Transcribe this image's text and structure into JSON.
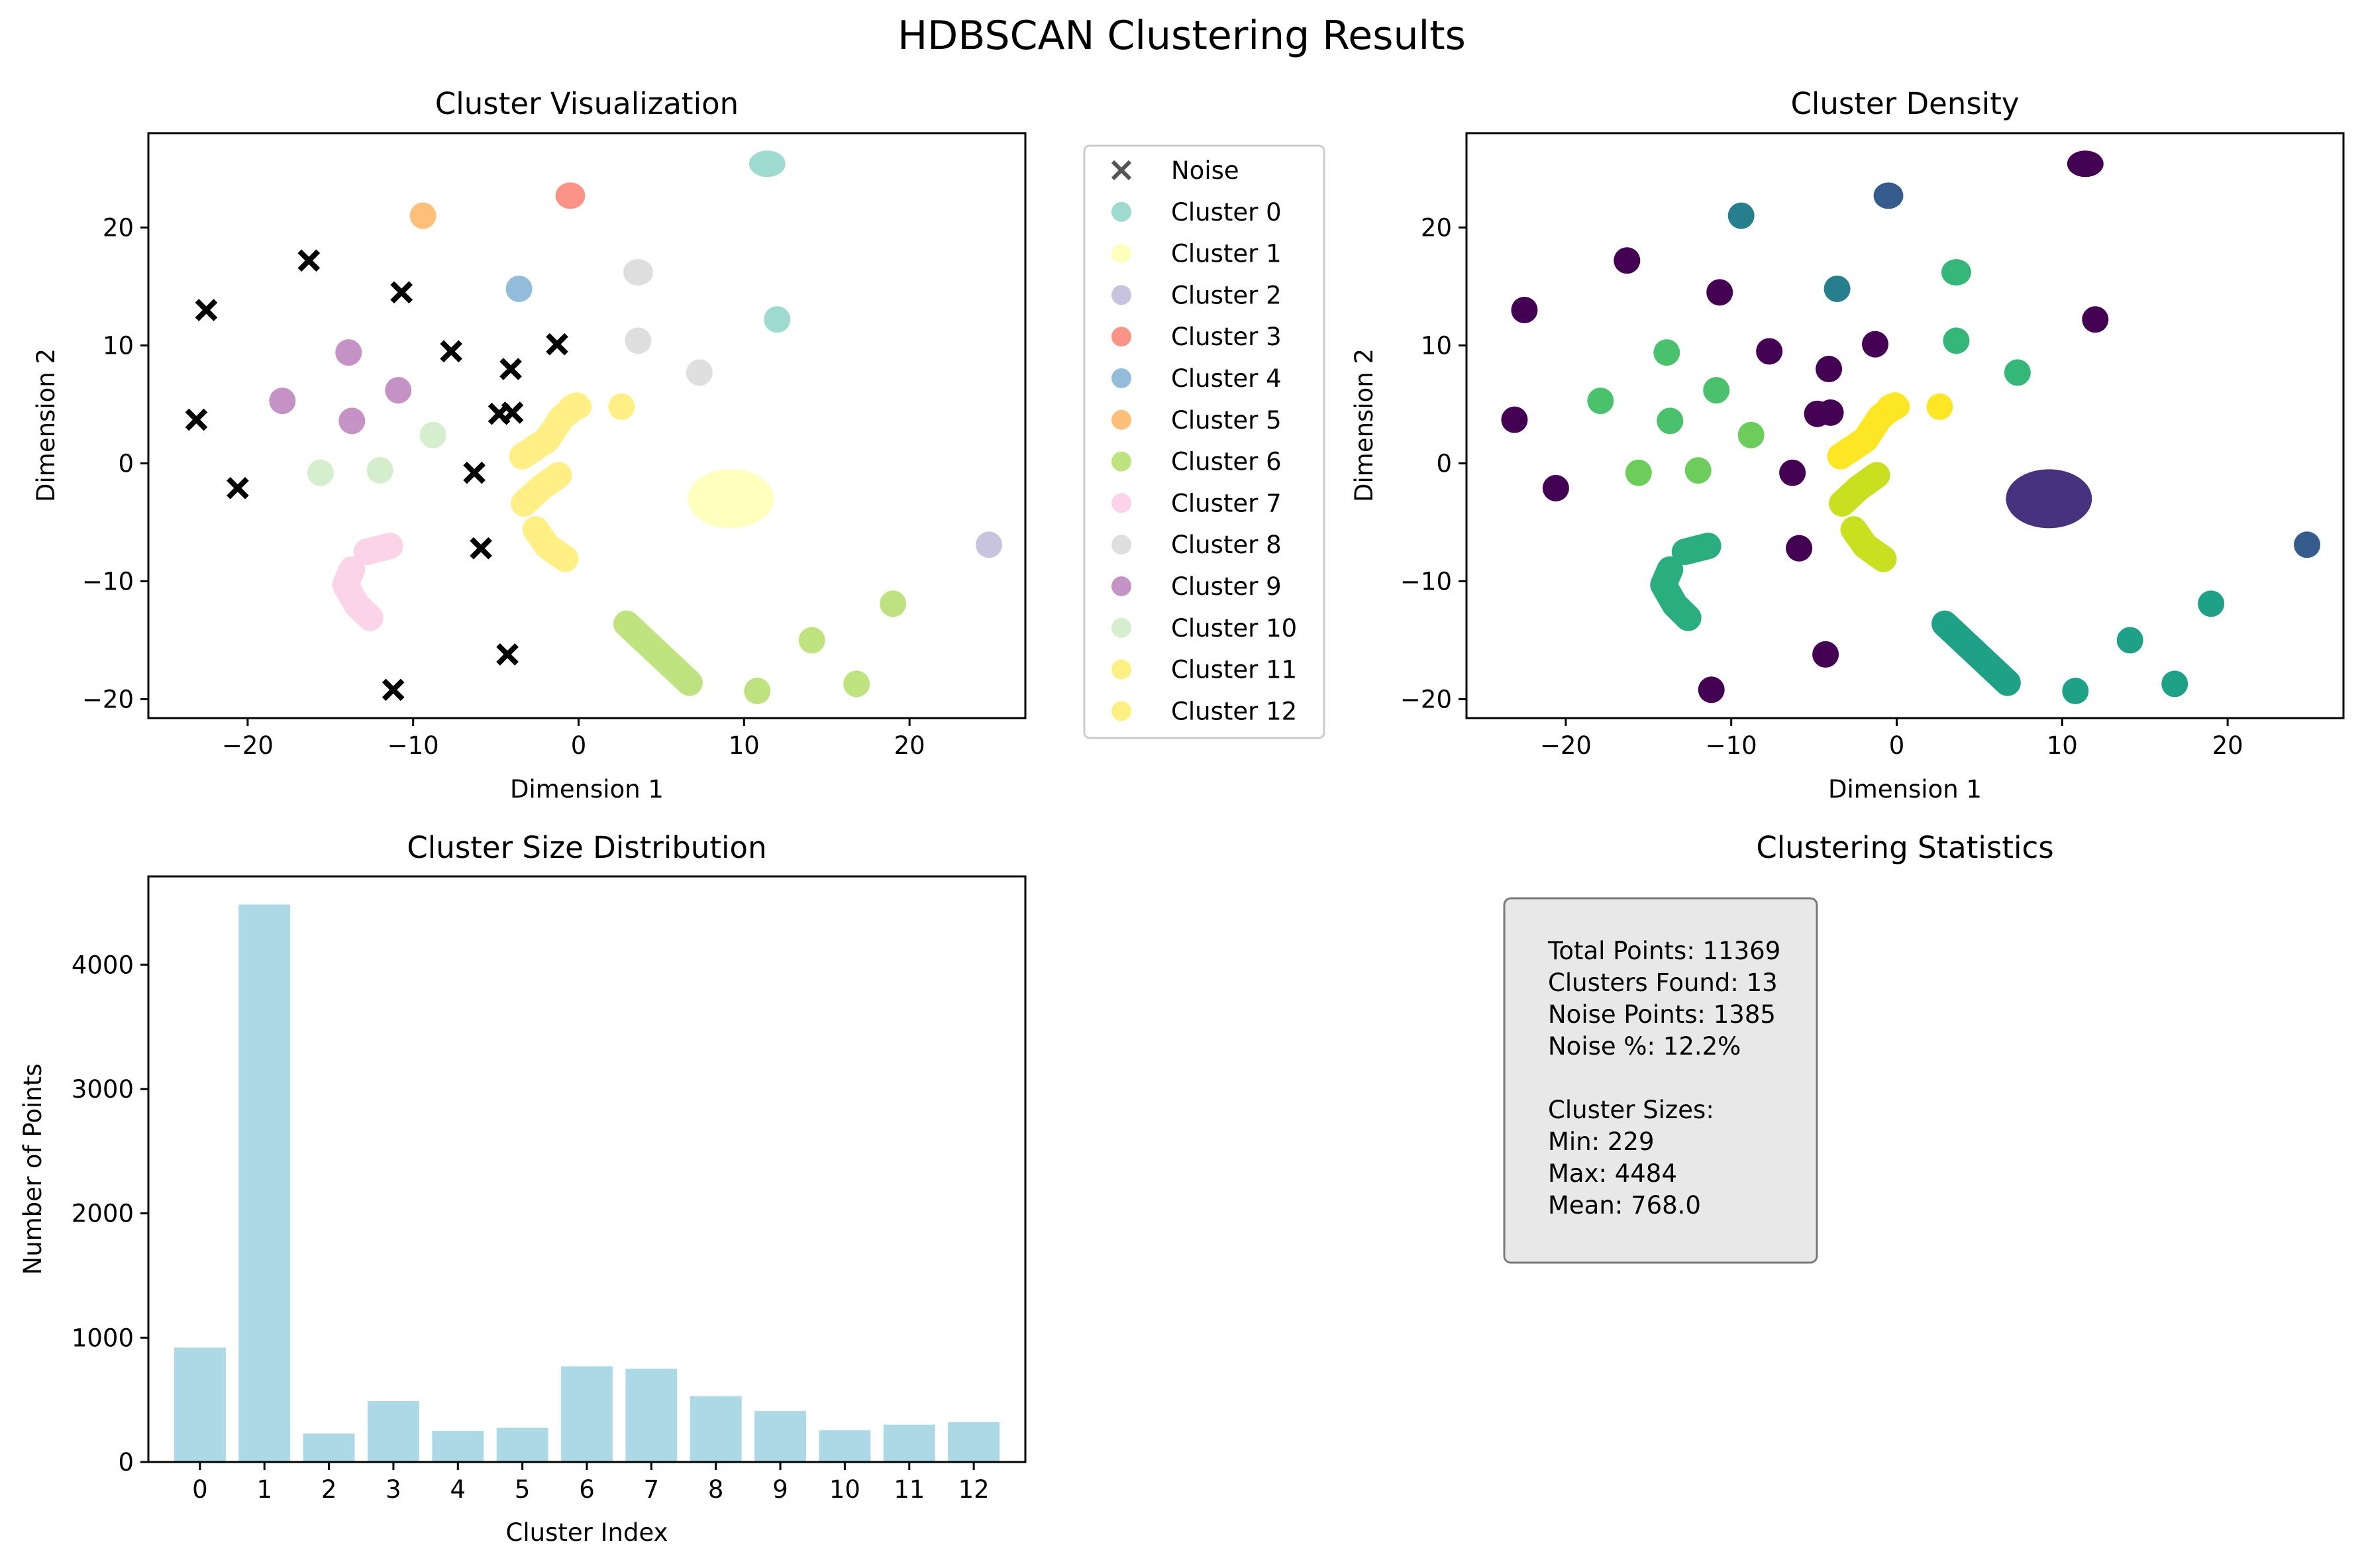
{
  "figure": {
    "suptitle": "HDBSCAN Clustering Results"
  },
  "chart_data": [
    {
      "type": "scatter",
      "title": "Cluster Visualization",
      "xlabel": "Dimension 1",
      "ylabel": "Dimension 2",
      "xlim": [
        -26,
        27
      ],
      "ylim": [
        -21.6,
        28
      ],
      "xticks": [
        -20,
        -10,
        0,
        10,
        20
      ],
      "yticks": [
        -20,
        -10,
        0,
        10,
        20
      ],
      "grid": false,
      "legend": "outside right",
      "noise": {
        "name": "Noise",
        "marker": "x",
        "color": "#000000",
        "points": [
          [
            -22.5,
            13
          ],
          [
            -16.3,
            17.2
          ],
          [
            -10.7,
            14.5
          ],
          [
            -23.1,
            3.7
          ],
          [
            -20.6,
            -2.1
          ],
          [
            -7.7,
            9.5
          ],
          [
            -4.1,
            8
          ],
          [
            -1.3,
            10.1
          ],
          [
            -4.8,
            4.2
          ],
          [
            -4,
            4.3
          ],
          [
            -6.3,
            -0.8
          ],
          [
            -5.9,
            -7.2
          ],
          [
            -4.3,
            -16.2
          ],
          [
            -11.2,
            -19.2
          ]
        ]
      },
      "series": [
        {
          "name": "Cluster 0",
          "color": "#8dd3c7",
          "blobs": [
            [
              11.4,
              25.4,
              1.1,
              1.0
            ],
            [
              12,
              12.2,
              0.6,
              0.7
            ]
          ]
        },
        {
          "name": "Cluster 1",
          "color": "#ffffb3",
          "blobs": [
            [
              9.2,
              -3,
              2.6,
              2.5
            ]
          ]
        },
        {
          "name": "Cluster 2",
          "color": "#bebada",
          "blobs": [
            [
              24.8,
              -6.9,
              0.6,
              0.6
            ]
          ]
        },
        {
          "name": "Cluster 3",
          "color": "#fb8072",
          "blobs": [
            [
              -0.5,
              22.7,
              0.9,
              0.7
            ]
          ]
        },
        {
          "name": "Cluster 4",
          "color": "#80b1d3",
          "blobs": [
            [
              -3.6,
              14.8,
              0.6,
              0.6
            ]
          ]
        },
        {
          "name": "Cluster 5",
          "color": "#fdb462",
          "blobs": [
            [
              -9.4,
              21,
              0.7,
              0.6
            ]
          ]
        },
        {
          "name": "Cluster 6",
          "color": "#b3de69",
          "strokes": [
            [
              [
                2.9,
                -13.6
              ],
              [
                6.7,
                -18.6
              ]
            ]
          ],
          "blobs": [
            [
              10.8,
              -19.3,
              0.6,
              0.6
            ],
            [
              14.1,
              -15,
              0.6,
              0.6
            ],
            [
              16.8,
              -18.7,
              0.6,
              0.6
            ],
            [
              19,
              -11.9,
              0.6,
              0.6
            ]
          ]
        },
        {
          "name": "Cluster 7",
          "color": "#fccde5",
          "strokes": [
            [
              [
                -13.7,
                -9
              ],
              [
                -14.1,
                -10.3
              ],
              [
                -13.4,
                -12
              ],
              [
                -12.6,
                -13.1
              ]
            ],
            [
              [
                -12.8,
                -7.5
              ],
              [
                -11.4,
                -7
              ]
            ]
          ]
        },
        {
          "name": "Cluster 8",
          "color": "#d9d9d9",
          "blobs": [
            [
              3.6,
              16.2,
              0.9,
              0.8
            ],
            [
              3.6,
              10.4,
              0.7,
              0.7
            ],
            [
              7.3,
              7.7,
              0.6,
              0.6
            ]
          ]
        },
        {
          "name": "Cluster 9",
          "color": "#bc80bd",
          "blobs": [
            [
              -13.9,
              9.4,
              0.6,
              0.6
            ],
            [
              -17.9,
              5.3,
              0.6,
              0.6
            ],
            [
              -13.7,
              3.6,
              0.6,
              0.6
            ],
            [
              -10.9,
              6.2,
              0.6,
              0.6
            ]
          ]
        },
        {
          "name": "Cluster 10",
          "color": "#ccebc5",
          "blobs": [
            [
              -15.6,
              -0.8,
              0.6,
              0.6
            ],
            [
              -12,
              -0.6,
              0.6,
              0.6
            ],
            [
              -8.8,
              2.4,
              0.6,
              0.6
            ]
          ]
        },
        {
          "name": "Cluster 11",
          "color": "#ffed6f",
          "strokes": [
            [
              [
                -3.4,
                0.6
              ],
              [
                -1.9,
                2
              ],
              [
                -1,
                3.9
              ],
              [
                -0.1,
                4.9
              ]
            ],
            [
              [
                -3.3,
                -3.4
              ],
              [
                -2.3,
                -2.1
              ],
              [
                -1.2,
                -1
              ]
            ],
            [
              [
                -2.6,
                -5.6
              ],
              [
                -1.9,
                -7
              ],
              [
                -0.8,
                -8.1
              ]
            ]
          ],
          "blobs": [
            [
              -0.2,
              4.8,
              1.0,
              1.0
            ],
            [
              2.6,
              4.8,
              0.6,
              0.6
            ]
          ]
        },
        {
          "name": "Cluster 12",
          "color": "#ffed6f"
        }
      ]
    },
    {
      "type": "scatter",
      "title": "Cluster Density",
      "xlabel": "Dimension 1",
      "ylabel": "Dimension 2",
      "xlim": [
        -26,
        27
      ],
      "ylim": [
        -21.6,
        28
      ],
      "xticks": [
        -20,
        -10,
        0,
        10,
        20
      ],
      "yticks": [
        -20,
        -10,
        0,
        10,
        20
      ],
      "grid": false,
      "colormap": "viridis",
      "groups": [
        {
          "color": "#440154",
          "blobs": [
            [
              -22.5,
              13,
              0.6,
              0.6
            ],
            [
              -16.3,
              17.2,
              0.6,
              0.6
            ],
            [
              -10.7,
              14.5,
              0.6,
              0.6
            ],
            [
              -23.1,
              3.7,
              0.6,
              0.6
            ],
            [
              -20.6,
              -2.1,
              0.6,
              0.6
            ],
            [
              -7.7,
              9.5,
              0.6,
              0.6
            ],
            [
              -4.1,
              8,
              0.6,
              0.6
            ],
            [
              -1.3,
              10.1,
              0.6,
              0.6
            ],
            [
              -4.8,
              4.2,
              0.6,
              0.6
            ],
            [
              -4,
              4.3,
              0.6,
              0.6
            ],
            [
              -6.3,
              -0.8,
              0.6,
              0.6
            ],
            [
              -5.9,
              -7.2,
              0.6,
              0.6
            ],
            [
              -4.3,
              -16.2,
              0.6,
              0.6
            ],
            [
              -11.2,
              -19.2,
              0.6,
              0.6
            ],
            [
              11.4,
              25.4,
              1.1,
              1.0
            ],
            [
              12,
              12.2,
              0.6,
              0.7
            ]
          ]
        },
        {
          "color": "#46327e",
          "blobs": [
            [
              9.2,
              -3,
              2.6,
              2.5
            ]
          ]
        },
        {
          "color": "#365c8d",
          "blobs": [
            [
              24.8,
              -6.9,
              0.6,
              0.6
            ],
            [
              -0.5,
              22.7,
              0.9,
              0.7
            ]
          ]
        },
        {
          "color": "#277f8e",
          "blobs": [
            [
              -3.6,
              14.8,
              0.6,
              0.6
            ],
            [
              -9.4,
              21,
              0.7,
              0.6
            ]
          ]
        },
        {
          "color": "#1fa187",
          "strokes": [
            [
              [
                2.9,
                -13.6
              ],
              [
                6.7,
                -18.6
              ]
            ]
          ],
          "blobs": [
            [
              10.8,
              -19.3,
              0.6,
              0.6
            ],
            [
              14.1,
              -15,
              0.6,
              0.6
            ],
            [
              16.8,
              -18.7,
              0.6,
              0.6
            ],
            [
              19,
              -11.9,
              0.6,
              0.6
            ]
          ]
        },
        {
          "color": "#2aae80",
          "strokes": [
            [
              [
                -13.7,
                -9
              ],
              [
                -14.1,
                -10.3
              ],
              [
                -13.4,
                -12
              ],
              [
                -12.6,
                -13.1
              ]
            ],
            [
              [
                -12.8,
                -7.5
              ],
              [
                -11.4,
                -7
              ]
            ]
          ]
        },
        {
          "color": "#35b779",
          "blobs": [
            [
              3.6,
              16.2,
              0.9,
              0.8
            ],
            [
              3.6,
              10.4,
              0.7,
              0.7
            ],
            [
              7.3,
              7.7,
              0.6,
              0.6
            ]
          ]
        },
        {
          "color": "#4ac16d",
          "blobs": [
            [
              -13.9,
              9.4,
              0.6,
              0.6
            ],
            [
              -17.9,
              5.3,
              0.6,
              0.6
            ],
            [
              -13.7,
              3.6,
              0.6,
              0.6
            ],
            [
              -10.9,
              6.2,
              0.6,
              0.6
            ]
          ]
        },
        {
          "color": "#6ccd5a",
          "blobs": [
            [
              -15.6,
              -0.8,
              0.6,
              0.6
            ],
            [
              -12,
              -0.6,
              0.6,
              0.6
            ],
            [
              -8.8,
              2.4,
              0.6,
              0.6
            ]
          ]
        },
        {
          "color": "#c8e020",
          "strokes": [
            [
              [
                -3.3,
                -3.4
              ],
              [
                -2.3,
                -2.1
              ],
              [
                -1.2,
                -1
              ]
            ],
            [
              [
                -2.6,
                -5.6
              ],
              [
                -1.9,
                -7
              ],
              [
                -0.8,
                -8.1
              ]
            ]
          ]
        },
        {
          "color": "#fde725",
          "strokes": [
            [
              [
                -3.4,
                0.6
              ],
              [
                -1.9,
                2
              ],
              [
                -1,
                3.9
              ],
              [
                -0.1,
                4.9
              ]
            ]
          ],
          "blobs": [
            [
              -0.2,
              4.8,
              1.0,
              1.0
            ],
            [
              2.6,
              4.8,
              0.6,
              0.6
            ]
          ]
        }
      ]
    },
    {
      "type": "bar",
      "title": "Cluster Size Distribution",
      "xlabel": "Cluster Index",
      "ylabel": "Number of Points",
      "categories": [
        "0",
        "1",
        "2",
        "3",
        "4",
        "5",
        "6",
        "7",
        "8",
        "9",
        "10",
        "11",
        "12"
      ],
      "values": [
        920,
        4484,
        229,
        490,
        250,
        275,
        770,
        750,
        530,
        410,
        255,
        300,
        320
      ],
      "ylim": [
        0,
        4710
      ],
      "yticks": [
        0,
        1000,
        2000,
        3000,
        4000
      ],
      "color": "#add8e6",
      "grid": false
    }
  ],
  "stats": {
    "title": "Clustering Statistics",
    "lines": [
      "Total Points: 11369",
      "Clusters Found: 13",
      "Noise Points: 1385",
      "Noise %: 12.2%",
      "",
      "Cluster Sizes:",
      "Min: 229",
      "Max: 4484",
      "Mean: 768.0"
    ]
  }
}
